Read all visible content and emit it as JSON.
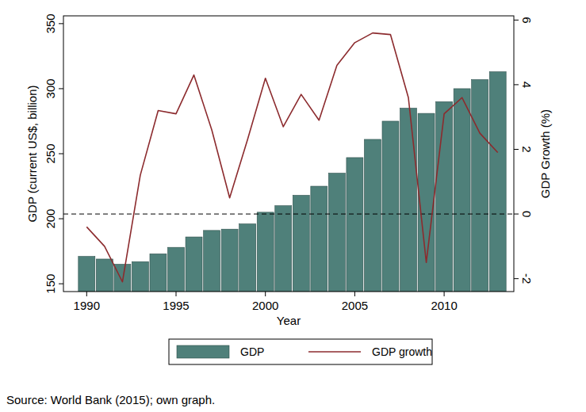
{
  "chart_data": {
    "type": "bar",
    "x": [
      1990,
      1991,
      1992,
      1993,
      1994,
      1995,
      1996,
      1997,
      1998,
      1999,
      2000,
      2001,
      2002,
      2003,
      2004,
      2005,
      2006,
      2007,
      2008,
      2009,
      2010,
      2011,
      2012,
      2013
    ],
    "series": [
      {
        "name": "GDP",
        "type": "bar",
        "color": "#4f807a",
        "values": [
          171,
          169,
          165,
          167,
          173,
          178,
          186,
          191,
          192,
          196,
          205,
          210,
          218,
          225,
          235,
          247,
          261,
          275,
          285,
          281,
          290,
          300,
          307,
          313
        ]
      },
      {
        "name": "GDP growth",
        "type": "line",
        "color": "#8c2b2e",
        "axis": "y2",
        "values": [
          -0.4,
          -1.0,
          -2.1,
          1.2,
          3.2,
          3.1,
          4.3,
          2.6,
          0.5,
          2.3,
          4.2,
          2.7,
          3.7,
          2.9,
          4.6,
          5.3,
          5.6,
          5.55,
          3.6,
          -1.5,
          3.1,
          3.6,
          2.5,
          1.9
        ]
      }
    ],
    "x_label": "Year",
    "y_label": "GDP (current US$, billion)",
    "y2_label": "GDP Growth (%)",
    "xlim": [
      1988.7,
      2013.9
    ],
    "xticks": [
      1990,
      1995,
      2000,
      2005,
      2010
    ],
    "ylim": [
      144,
      356
    ],
    "yticks": [
      150,
      200,
      250,
      300,
      350
    ],
    "y2lim": [
      -2.4,
      6.13
    ],
    "y2ticks": [
      -2,
      0,
      2,
      4,
      6
    ],
    "ref_lines": [
      {
        "axis": "y2",
        "value": 0,
        "line_style": "dashed"
      }
    ],
    "legend": "bottom",
    "grid": false,
    "note": "Source: World Bank (2015); own graph."
  }
}
